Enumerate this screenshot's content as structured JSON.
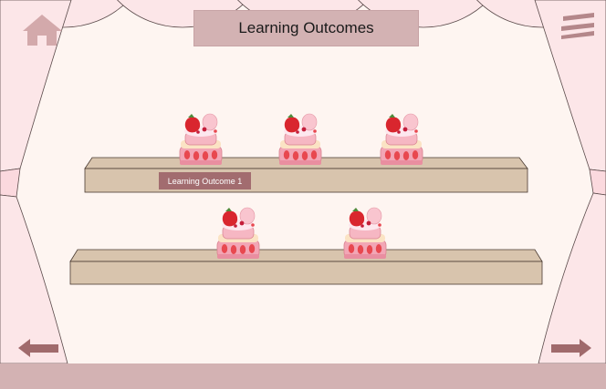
{
  "header": {
    "title": "Learning Outcomes",
    "home_icon": "home-icon",
    "menu_icon": "hamburger-menu-icon"
  },
  "shelves": [
    {
      "items": [
        {
          "tooltip": "Learning Outcome 1"
        },
        {
          "tooltip": ""
        },
        {
          "tooltip": ""
        }
      ]
    },
    {
      "items": [
        {
          "tooltip": ""
        },
        {
          "tooltip": ""
        }
      ]
    }
  ],
  "active_tooltip": "Learning Outcome 1",
  "navigation": {
    "prev_icon": "arrow-left-icon",
    "next_icon": "arrow-right-icon"
  },
  "colors": {
    "background": "#fef5f1",
    "curtain": "#fce6e8",
    "accent": "#d3b2b3",
    "shelf": "#d8c4ad",
    "tooltip": "#a26c6f",
    "icon": "#d3a9ab",
    "arrow": "#a06a6c"
  }
}
